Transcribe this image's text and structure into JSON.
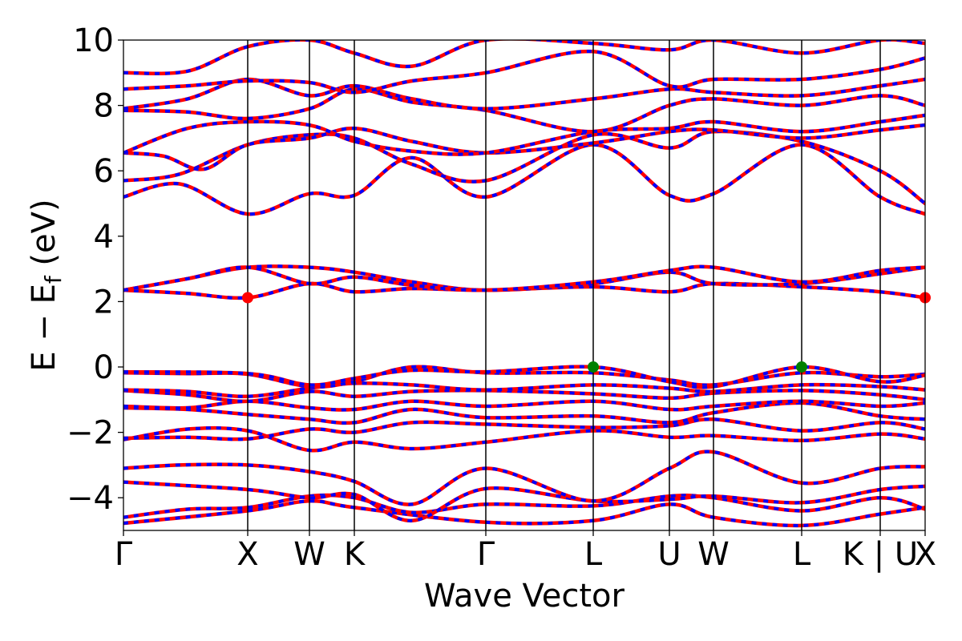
{
  "chart_data": {
    "type": "line",
    "title": "",
    "xlabel": "Wave Vector",
    "ylabel": "E − E",
    "ylabel_subscript": "f",
    "ylabel_unit": " (eV)",
    "ylim": [
      -5,
      10
    ],
    "yticks": [
      10,
      8,
      6,
      4,
      2,
      0,
      -2,
      -4
    ],
    "ytick_labels": [
      "10",
      "8",
      "6",
      "4",
      "2",
      "0",
      "−2",
      "−4"
    ],
    "k_path": {
      "x_range": [
        0,
        10
      ],
      "points": [
        {
          "label": "Γ",
          "x": 0
        },
        {
          "label": "X",
          "x": 1.55
        },
        {
          "label": "W",
          "x": 2.32
        },
        {
          "label": "K",
          "x": 2.88
        },
        {
          "label": "Γ",
          "x": 4.52
        },
        {
          "label": "L",
          "x": 5.86
        },
        {
          "label": "U",
          "x": 6.81
        },
        {
          "label": "W",
          "x": 7.36
        },
        {
          "label": "L",
          "x": 8.46
        },
        {
          "label": "K | U",
          "x": 9.44
        },
        {
          "label": "X",
          "x": 10
        }
      ]
    },
    "series_colors": {
      "spin_up": "#ff0000",
      "spin_down": "#0000ff"
    },
    "markers": [
      {
        "role": "cbm",
        "x": 1.55,
        "y": 2.12,
        "color": "#ff0000"
      },
      {
        "role": "cbm",
        "x": 10,
        "y": 2.12,
        "color": "#ff0000"
      },
      {
        "role": "vbm",
        "x": 5.86,
        "y": 0.0,
        "color": "#008000"
      },
      {
        "role": "vbm",
        "x": 8.46,
        "y": 0.0,
        "color": "#008000"
      }
    ],
    "bands": [
      [
        [
          0,
          -4.78
        ],
        [
          1.55,
          -4.4
        ],
        [
          2.32,
          -4.1
        ],
        [
          2.88,
          -4.3
        ],
        [
          4.52,
          -4.75
        ],
        [
          5.86,
          -4.7
        ],
        [
          6.81,
          -4.2
        ],
        [
          7.36,
          -4.6
        ],
        [
          8.46,
          -4.85
        ],
        [
          9.44,
          -4.5
        ],
        [
          10,
          -4.3
        ]
      ],
      [
        [
          0,
          -4.6
        ],
        [
          0.8,
          -4.35
        ],
        [
          1.55,
          -4.3
        ],
        [
          2.32,
          -3.95
        ],
        [
          2.88,
          -4.0
        ],
        [
          3.6,
          -4.45
        ],
        [
          4.52,
          -4.2
        ],
        [
          5.86,
          -4.25
        ],
        [
          6.81,
          -3.95
        ],
        [
          7.36,
          -4.0
        ],
        [
          8.46,
          -4.4
        ],
        [
          9.44,
          -4.0
        ],
        [
          10,
          -4.35
        ]
      ],
      [
        [
          0,
          -3.52
        ],
        [
          1.55,
          -3.75
        ],
        [
          2.32,
          -4.0
        ],
        [
          2.88,
          -3.9
        ],
        [
          3.6,
          -4.7
        ],
        [
          4.52,
          -3.72
        ],
        [
          5.86,
          -4.1
        ],
        [
          6.81,
          -4.05
        ],
        [
          7.36,
          -3.95
        ],
        [
          8.46,
          -4.15
        ],
        [
          9.44,
          -3.75
        ],
        [
          10,
          -3.65
        ]
      ],
      [
        [
          0,
          -3.1
        ],
        [
          0.7,
          -3.0
        ],
        [
          1.55,
          -3.0
        ],
        [
          2.32,
          -3.2
        ],
        [
          2.88,
          -3.5
        ],
        [
          3.6,
          -4.2
        ],
        [
          4.52,
          -3.1
        ],
        [
          5.86,
          -4.1
        ],
        [
          6.81,
          -3.1
        ],
        [
          7.36,
          -2.6
        ],
        [
          8.46,
          -3.55
        ],
        [
          9.44,
          -3.1
        ],
        [
          10,
          -3.05
        ]
      ],
      [
        [
          0,
          -2.22
        ],
        [
          0.8,
          -1.9
        ],
        [
          1.55,
          -1.95
        ],
        [
          2.32,
          -2.55
        ],
        [
          2.88,
          -2.3
        ],
        [
          3.6,
          -2.5
        ],
        [
          4.52,
          -2.3
        ],
        [
          5.86,
          -1.95
        ],
        [
          6.81,
          -2.15
        ],
        [
          7.36,
          -2.1
        ],
        [
          8.46,
          -2.25
        ],
        [
          9.44,
          -2.05
        ],
        [
          10,
          -2.2
        ]
      ],
      [
        [
          0,
          -2.18
        ],
        [
          0.8,
          -2.15
        ],
        [
          1.55,
          -2.2
        ],
        [
          2.32,
          -1.9
        ],
        [
          2.88,
          -2.0
        ],
        [
          3.6,
          -1.7
        ],
        [
          4.52,
          -1.75
        ],
        [
          5.86,
          -1.85
        ],
        [
          6.81,
          -1.8
        ],
        [
          7.36,
          -1.6
        ],
        [
          8.46,
          -1.95
        ],
        [
          9.44,
          -1.7
        ],
        [
          10,
          -1.9
        ]
      ],
      [
        [
          0,
          -1.25
        ],
        [
          0.8,
          -1.3
        ],
        [
          1.55,
          -1.45
        ],
        [
          2.32,
          -1.6
        ],
        [
          2.88,
          -1.7
        ],
        [
          3.6,
          -1.3
        ],
        [
          4.52,
          -1.55
        ],
        [
          5.86,
          -1.5
        ],
        [
          6.81,
          -1.7
        ],
        [
          7.36,
          -1.4
        ],
        [
          8.46,
          -1.1
        ],
        [
          9.44,
          -1.5
        ],
        [
          10,
          -1.6
        ]
      ],
      [
        [
          0,
          -1.2
        ],
        [
          0.8,
          -1.25
        ],
        [
          1.55,
          -1.05
        ],
        [
          2.32,
          -1.25
        ],
        [
          2.88,
          -1.3
        ],
        [
          3.6,
          -1.05
        ],
        [
          4.52,
          -1.2
        ],
        [
          5.86,
          -1.05
        ],
        [
          6.81,
          -1.3
        ],
        [
          7.36,
          -1.2
        ],
        [
          8.46,
          -1.05
        ],
        [
          9.44,
          -1.2
        ],
        [
          10,
          -1.1
        ]
      ],
      [
        [
          0,
          -0.72
        ],
        [
          0.8,
          -0.85
        ],
        [
          1.55,
          -1.05
        ],
        [
          2.32,
          -0.75
        ],
        [
          2.88,
          -0.9
        ],
        [
          3.6,
          -0.75
        ],
        [
          4.52,
          -0.72
        ],
        [
          5.86,
          -0.82
        ],
        [
          6.81,
          -0.95
        ],
        [
          7.36,
          -0.8
        ],
        [
          8.46,
          -0.72
        ],
        [
          9.44,
          -0.85
        ],
        [
          10,
          -1.0
        ]
      ],
      [
        [
          0,
          -0.7
        ],
        [
          0.8,
          -0.75
        ],
        [
          1.55,
          -0.9
        ],
        [
          2.32,
          -0.65
        ],
        [
          2.88,
          -0.5
        ],
        [
          3.6,
          -0.55
        ],
        [
          4.52,
          -0.7
        ],
        [
          5.86,
          -0.55
        ],
        [
          6.81,
          -0.65
        ],
        [
          7.36,
          -0.75
        ],
        [
          8.46,
          -0.55
        ],
        [
          9.44,
          -0.6
        ],
        [
          10,
          -0.7
        ]
      ],
      [
        [
          0,
          -0.18
        ],
        [
          0.8,
          -0.2
        ],
        [
          1.55,
          -0.22
        ],
        [
          2.32,
          -0.6
        ],
        [
          2.88,
          -0.45
        ],
        [
          3.6,
          0.0
        ],
        [
          4.52,
          -0.18
        ],
        [
          5.86,
          -0.18
        ],
        [
          6.81,
          -0.4
        ],
        [
          7.36,
          -0.55
        ],
        [
          8.46,
          -0.18
        ],
        [
          9.44,
          -0.3
        ],
        [
          10,
          -0.22
        ]
      ],
      [
        [
          0,
          -0.15
        ],
        [
          1.55,
          -0.2
        ],
        [
          2.32,
          -0.55
        ],
        [
          2.88,
          -0.35
        ],
        [
          3.6,
          -0.1
        ],
        [
          4.52,
          -0.15
        ],
        [
          5.86,
          0.0
        ],
        [
          6.81,
          -0.45
        ],
        [
          7.36,
          -0.6
        ],
        [
          8.46,
          0.0
        ],
        [
          9.44,
          -0.45
        ],
        [
          10,
          -0.25
        ]
      ],
      [
        [
          0,
          2.35
        ],
        [
          0.8,
          2.25
        ],
        [
          1.55,
          2.12
        ],
        [
          2.32,
          2.55
        ],
        [
          2.88,
          2.3
        ],
        [
          3.6,
          2.4
        ],
        [
          4.52,
          2.35
        ],
        [
          5.86,
          2.45
        ],
        [
          6.81,
          2.3
        ],
        [
          7.36,
          2.55
        ],
        [
          8.46,
          2.45
        ],
        [
          9.44,
          2.3
        ],
        [
          10,
          2.12
        ]
      ],
      [
        [
          0,
          2.35
        ],
        [
          0.8,
          2.7
        ],
        [
          1.55,
          3.05
        ],
        [
          2.32,
          3.05
        ],
        [
          2.88,
          2.9
        ],
        [
          3.6,
          2.6
        ],
        [
          4.52,
          2.35
        ],
        [
          5.86,
          2.55
        ],
        [
          6.81,
          2.9
        ],
        [
          7.36,
          2.55
        ],
        [
          8.46,
          2.55
        ],
        [
          9.44,
          2.85
        ],
        [
          10,
          3.05
        ]
      ],
      [
        [
          0,
          2.35
        ],
        [
          0.8,
          2.7
        ],
        [
          1.55,
          3.05
        ],
        [
          2.32,
          2.55
        ],
        [
          2.88,
          2.75
        ],
        [
          3.6,
          2.5
        ],
        [
          4.52,
          2.35
        ],
        [
          5.86,
          2.6
        ],
        [
          6.81,
          2.95
        ],
        [
          7.36,
          3.05
        ],
        [
          8.46,
          2.6
        ],
        [
          9.44,
          2.95
        ],
        [
          10,
          3.05
        ]
      ],
      [
        [
          0,
          5.2
        ],
        [
          0.7,
          5.6
        ],
        [
          1.55,
          4.68
        ],
        [
          2.32,
          5.3
        ],
        [
          2.88,
          5.25
        ],
        [
          3.6,
          6.4
        ],
        [
          4.52,
          5.2
        ],
        [
          5.86,
          6.8
        ],
        [
          6.81,
          5.25
        ],
        [
          7.36,
          5.3
        ],
        [
          8.46,
          6.8
        ],
        [
          9.44,
          5.2
        ],
        [
          10,
          4.68
        ]
      ],
      [
        [
          0,
          5.7
        ],
        [
          0.7,
          5.9
        ],
        [
          1.55,
          6.8
        ],
        [
          2.32,
          7.1
        ],
        [
          2.88,
          7.0
        ],
        [
          3.6,
          6.2
        ],
        [
          4.52,
          5.7
        ],
        [
          5.86,
          7.1
        ],
        [
          6.81,
          6.7
        ],
        [
          7.36,
          7.2
        ],
        [
          8.46,
          6.9
        ],
        [
          9.44,
          6.0
        ],
        [
          10,
          5.0
        ]
      ],
      [
        [
          0,
          6.55
        ],
        [
          0.5,
          6.45
        ],
        [
          1.0,
          6.05
        ],
        [
          1.55,
          6.8
        ],
        [
          2.32,
          7.0
        ],
        [
          2.88,
          7.3
        ],
        [
          3.6,
          6.9
        ],
        [
          4.52,
          6.55
        ],
        [
          5.86,
          6.85
        ],
        [
          6.81,
          7.2
        ],
        [
          7.36,
          7.25
        ],
        [
          8.46,
          7.0
        ],
        [
          9.44,
          7.25
        ],
        [
          10,
          7.4
        ]
      ],
      [
        [
          0,
          6.55
        ],
        [
          0.8,
          7.3
        ],
        [
          1.55,
          7.5
        ],
        [
          2.32,
          7.4
        ],
        [
          2.88,
          6.9
        ],
        [
          3.6,
          6.6
        ],
        [
          4.52,
          6.55
        ],
        [
          5.86,
          7.2
        ],
        [
          6.81,
          7.3
        ],
        [
          7.36,
          7.5
        ],
        [
          8.46,
          7.2
        ],
        [
          9.44,
          7.5
        ],
        [
          10,
          7.7
        ]
      ],
      [
        [
          0,
          7.85
        ],
        [
          0.8,
          7.8
        ],
        [
          1.55,
          7.6
        ],
        [
          2.32,
          7.9
        ],
        [
          2.88,
          8.5
        ],
        [
          3.6,
          8.1
        ],
        [
          4.52,
          7.85
        ],
        [
          5.86,
          7.2
        ],
        [
          6.81,
          8.0
        ],
        [
          7.36,
          8.2
        ],
        [
          8.46,
          8.0
        ],
        [
          9.44,
          8.3
        ],
        [
          10,
          8.0
        ]
      ],
      [
        [
          0,
          7.9
        ],
        [
          0.8,
          8.2
        ],
        [
          1.55,
          8.8
        ],
        [
          2.32,
          8.3
        ],
        [
          2.88,
          8.6
        ],
        [
          3.6,
          8.2
        ],
        [
          4.52,
          7.9
        ],
        [
          5.86,
          8.2
        ],
        [
          6.81,
          8.5
        ],
        [
          7.36,
          8.4
        ],
        [
          8.46,
          8.3
        ],
        [
          9.44,
          8.6
        ],
        [
          10,
          8.8
        ]
      ],
      [
        [
          0,
          8.5
        ],
        [
          0.8,
          8.6
        ],
        [
          1.55,
          8.75
        ],
        [
          2.32,
          8.7
        ],
        [
          2.88,
          8.4
        ],
        [
          3.6,
          8.75
        ],
        [
          4.52,
          9.0
        ],
        [
          5.86,
          9.65
        ],
        [
          6.81,
          8.6
        ],
        [
          7.36,
          8.8
        ],
        [
          8.46,
          8.8
        ],
        [
          9.44,
          9.1
        ],
        [
          10,
          9.45
        ]
      ],
      [
        [
          0,
          9.0
        ],
        [
          0.8,
          9.05
        ],
        [
          1.55,
          9.8
        ],
        [
          2.32,
          10.0
        ],
        [
          2.88,
          9.6
        ],
        [
          3.6,
          9.2
        ],
        [
          4.52,
          10.0
        ],
        [
          5.86,
          9.9
        ],
        [
          6.81,
          9.7
        ],
        [
          7.36,
          10.0
        ],
        [
          8.46,
          9.6
        ],
        [
          9.44,
          10.0
        ],
        [
          10,
          9.9
        ]
      ]
    ]
  }
}
